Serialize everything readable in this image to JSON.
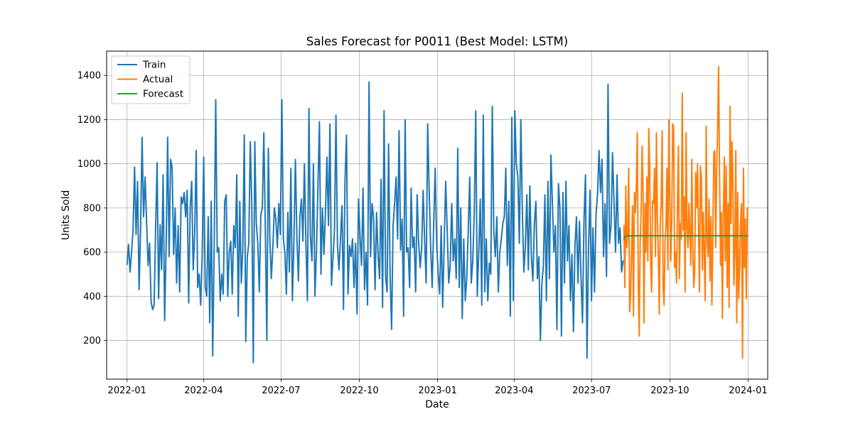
{
  "chart_data": {
    "type": "line",
    "title": "Sales Forecast for P0011 (Best Model: LSTM)",
    "xlabel": "Date",
    "ylabel": "Units Sold",
    "ylim": [
      25,
      1510
    ],
    "xlim": [
      "2021-12-08",
      "2024-01-24"
    ],
    "grid": true,
    "legend_position": "top-left",
    "x_ticks": [
      "2022-01-01",
      "2022-04-01",
      "2022-07-01",
      "2022-10-01",
      "2023-01-01",
      "2023-04-01",
      "2023-07-01",
      "2023-10-01",
      "2024-01-01"
    ],
    "x_tick_labels": [
      "2022-01",
      "2022-04",
      "2022-07",
      "2022-10",
      "2023-01",
      "2023-04",
      "2023-07",
      "2023-10",
      "2024-01"
    ],
    "y_ticks": [
      200,
      400,
      600,
      800,
      1000,
      1200,
      1400
    ],
    "y_tick_labels": [
      "200",
      "400",
      "600",
      "800",
      "1000",
      "1200",
      "1400"
    ],
    "series": [
      {
        "name": "Train",
        "color": "#1f77b4",
        "x_start": "2022-01-01",
        "x_end": "2023-08-07",
        "values": [
          545,
          635,
          510,
          600,
          700,
          985,
          680,
          920,
          430,
          700,
          1120,
          760,
          940,
          740,
          540,
          640,
          375,
          340,
          360,
          700,
          1005,
          390,
          725,
          520,
          950,
          290,
          620,
          1120,
          580,
          1020,
          980,
          590,
          800,
          460,
          720,
          420,
          850,
          820,
          870,
          760,
          880,
          370,
          800,
          920,
          520,
          680,
          1060,
          440,
          500,
          360,
          590,
          1030,
          440,
          400,
          760,
          280,
          830,
          130,
          640,
          1290,
          600,
          620,
          380,
          500,
          410,
          830,
          860,
          400,
          600,
          650,
          410,
          720,
          620,
          950,
          310,
          830,
          460,
          610,
          1130,
          195,
          580,
          640,
          1100,
          820,
          100,
          1100,
          730,
          640,
          420,
          770,
          800,
          1140,
          700,
          200,
          1070,
          660,
          480,
          620,
          800,
          750,
          620,
          820,
          680,
          1290,
          660,
          600,
          410,
          780,
          510,
          980,
          380,
          640,
          1020,
          670,
          470,
          760,
          840,
          650,
          1000,
          640,
          380,
          1250,
          670,
          560,
          1000,
          400,
          600,
          900,
          1190,
          500,
          800,
          590,
          780,
          1030,
          720,
          1180,
          450,
          570,
          700,
          1220,
          630,
          520,
          660,
          810,
          340,
          920,
          1130,
          410,
          630,
          580,
          660,
          440,
          640,
          320,
          840,
          670,
          540,
          890,
          430,
          600,
          360,
          1370,
          580,
          820,
          760,
          430,
          780,
          590,
          480,
          930,
          350,
          1240,
          490,
          420,
          1090,
          500,
          250,
          720,
          820,
          940,
          660,
          1150,
          610,
          750,
          310,
          1200,
          600,
          620,
          440,
          890,
          620,
          670,
          420,
          860,
          640,
          530,
          620,
          880,
          650,
          460,
          1180,
          880,
          620,
          440,
          720,
          980,
          640,
          500,
          410,
          720,
          350,
          640,
          920,
          700,
          460,
          540,
          820,
          560,
          660,
          480,
          1070,
          440,
          800,
          300,
          660,
          380,
          480,
          700,
          940,
          460,
          560,
          780,
          1240,
          400,
          600,
          840,
          360,
          1220,
          420,
          660,
          380,
          550,
          500,
          1260,
          700,
          580,
          760,
          420,
          600,
          660,
          730,
          760,
          980,
          540,
          830,
          310,
          1210,
          380,
          1240,
          1000,
          940,
          640,
          1200,
          780,
          510,
          630,
          860,
          520,
          900,
          580,
          470,
          730,
          830,
          480,
          580,
          200,
          460,
          540,
          860,
          380,
          920,
          480,
          1040,
          820,
          600,
          720,
          250,
          910,
          800,
          220,
          870,
          460,
          920,
          560,
          720,
          380,
          590,
          240,
          630,
          760,
          460,
          740,
          490,
          280,
          740,
          950,
          120,
          610,
          880,
          380,
          710,
          420,
          770,
          860,
          1060,
          870,
          1020,
          580,
          820,
          490,
          1360,
          640,
          720,
          1050,
          820,
          600,
          950,
          640,
          710,
          510,
          560
        ]
      },
      {
        "name": "Actual",
        "color": "#ff7f0e",
        "x_start": "2023-08-08",
        "x_end": "2023-12-31",
        "values": [
          720,
          440,
          900,
          620,
          680,
          980,
          330,
          400,
          600,
          810,
          310,
          870,
          780,
          900,
          1140,
          460,
          220,
          640,
          780,
          1080,
          880,
          280,
          820,
          600,
          940,
          560,
          1160,
          990,
          540,
          420,
          830,
          820,
          980,
          580,
          1140,
          760,
          580,
          320,
          740,
          820,
          1150,
          450,
          360,
          650,
          710,
          980,
          520,
          1200,
          860,
          560,
          740,
          1180,
          1170,
          530,
          600,
          460,
          820,
          1080,
          480,
          730,
          660,
          1320,
          700,
          850,
          420,
          1140,
          710,
          620,
          820,
          680,
          540,
          1020,
          640,
          440,
          510,
          960,
          800,
          1000,
          710,
          420,
          990,
          940,
          520,
          780,
          590,
          380,
          1170,
          660,
          580,
          840,
          470,
          760,
          360,
          680,
          1050,
          1060,
          620,
          980,
          1160,
          1440,
          960,
          540,
          780,
          300,
          760,
          1030,
          560,
          990,
          440,
          820,
          350,
          1260,
          730,
          1100,
          920,
          450,
          590,
          1060,
          280,
          870,
          390,
          520,
          740,
          820,
          120,
          980,
          530,
          750,
          390,
          800
        ]
      },
      {
        "name": "Forecast",
        "color": "#2ca02c",
        "x_start": "2023-08-08",
        "x_end": "2023-12-31",
        "values": [
          660,
          668,
          672,
          673,
          673,
          674,
          674,
          674,
          674,
          674,
          674,
          674,
          674,
          674,
          674,
          674,
          674,
          674,
          674,
          674,
          674,
          674,
          674,
          674,
          674,
          674,
          674,
          674,
          674,
          674,
          674,
          674,
          674,
          674,
          674,
          674,
          674,
          674,
          674,
          674,
          674,
          674,
          674,
          674,
          674,
          674,
          674,
          674,
          674,
          674,
          674,
          674,
          674,
          674,
          674,
          674,
          674,
          674,
          674,
          674,
          674,
          674,
          674,
          674,
          674,
          674,
          674,
          674,
          674,
          674,
          674,
          674,
          674,
          674,
          674,
          674,
          674,
          674,
          674,
          674,
          674,
          674,
          674,
          674,
          674,
          674,
          674,
          674,
          674,
          674,
          674,
          674,
          674,
          674,
          674,
          674,
          674,
          674,
          674,
          674,
          674,
          674,
          674,
          674,
          674,
          674,
          674,
          674,
          674,
          674,
          674,
          674,
          674,
          674,
          674,
          674,
          674,
          674,
          674,
          674,
          674,
          674,
          674,
          674,
          674,
          674,
          674,
          674,
          674,
          674,
          674,
          674,
          674,
          674,
          674,
          674,
          674,
          674,
          674,
          674,
          674,
          674,
          674,
          674,
          674
        ]
      }
    ]
  }
}
